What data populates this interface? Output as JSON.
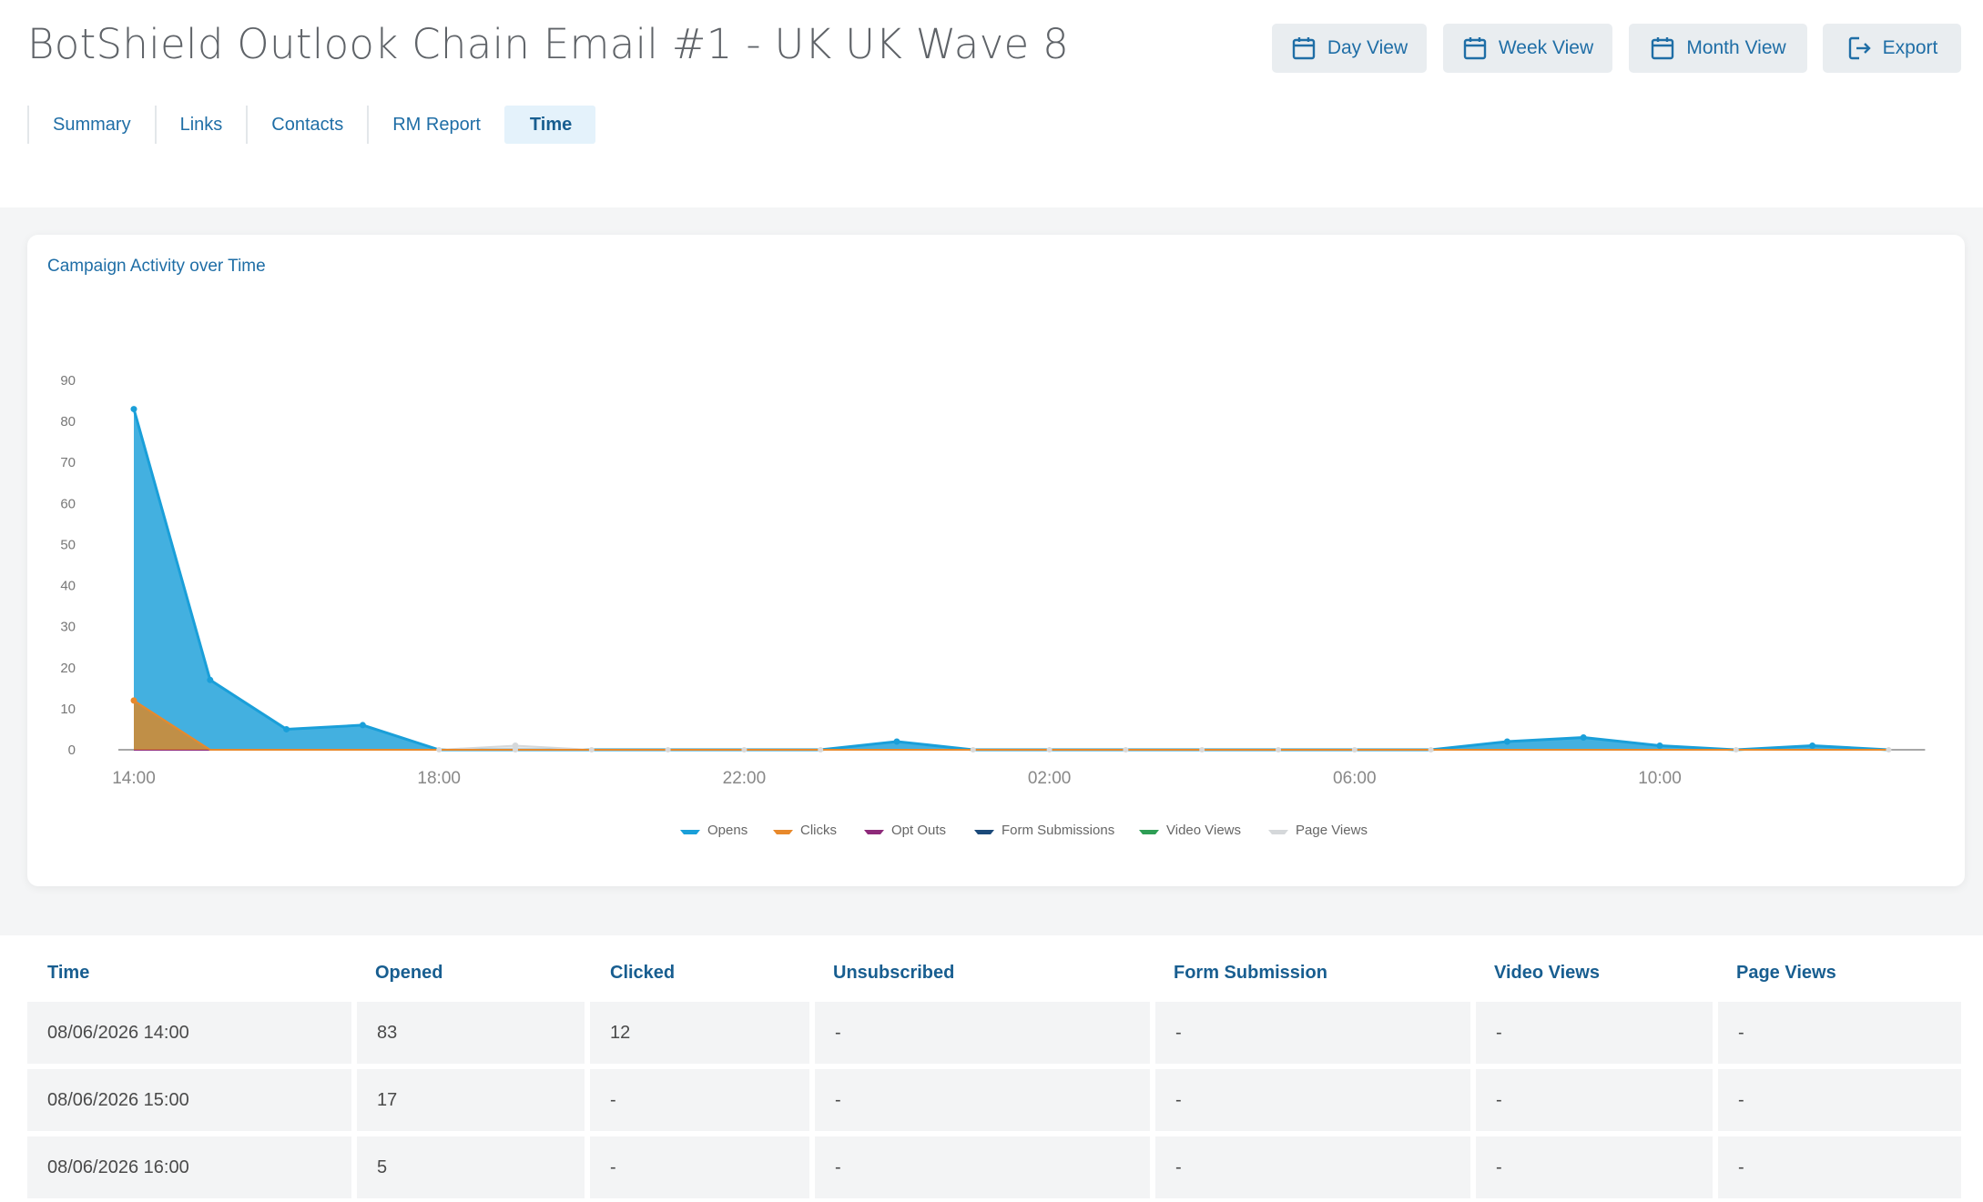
{
  "header": {
    "title": "BotShield Outlook Chain Email #1 - UK UK Wave 8",
    "buttons": {
      "day": "Day View",
      "week": "Week View",
      "month": "Month View",
      "export": "Export"
    }
  },
  "tabs": [
    {
      "label": "Summary",
      "active": false
    },
    {
      "label": "Links",
      "active": false
    },
    {
      "label": "Contacts",
      "active": false
    },
    {
      "label": "RM Report",
      "active": false
    },
    {
      "label": "Time",
      "active": true
    }
  ],
  "card": {
    "title": "Campaign Activity over Time"
  },
  "chart_data": {
    "type": "area",
    "title": "Campaign Activity over Time",
    "x": [
      "14:00",
      "15:00",
      "16:00",
      "17:00",
      "18:00",
      "19:00",
      "20:00",
      "21:00",
      "22:00",
      "23:00",
      "00:00",
      "01:00",
      "02:00",
      "03:00",
      "04:00",
      "05:00",
      "06:00",
      "07:00",
      "08:00",
      "09:00",
      "10:00",
      "11:00",
      "12:00",
      "13:00"
    ],
    "x_tick_labels": [
      "14:00",
      "18:00",
      "22:00",
      "02:00",
      "06:00",
      "10:00"
    ],
    "ylim": [
      0,
      90
    ],
    "y_ticks": [
      0,
      10,
      20,
      30,
      40,
      50,
      60,
      70,
      80,
      90
    ],
    "grid": false,
    "legend_position": "bottom",
    "series": [
      {
        "name": "Opens",
        "color": "#1a9fd9",
        "values": [
          83,
          17,
          5,
          6,
          0,
          0,
          0,
          0,
          0,
          0,
          2,
          0,
          0,
          0,
          0,
          0,
          0,
          0,
          2,
          3,
          1,
          0,
          1,
          0
        ]
      },
      {
        "name": "Clicks",
        "color": "#e8892b",
        "values": [
          12,
          0,
          0,
          0,
          0,
          0,
          0,
          0,
          0,
          0,
          0,
          0,
          0,
          0,
          0,
          0,
          0,
          0,
          0,
          0,
          0,
          0,
          0,
          0
        ]
      },
      {
        "name": "Opt Outs",
        "color": "#8e2a7a",
        "values": [
          0,
          0,
          0,
          0,
          0,
          0,
          0,
          0,
          0,
          0,
          0,
          0,
          0,
          0,
          0,
          0,
          0,
          0,
          0,
          0,
          0,
          0,
          0,
          0
        ]
      },
      {
        "name": "Form Submissions",
        "color": "#1b4a7a",
        "values": [
          0,
          0,
          0,
          0,
          0,
          0,
          0,
          0,
          0,
          0,
          0,
          0,
          0,
          0,
          0,
          0,
          0,
          0,
          0,
          0,
          0,
          0,
          0,
          0
        ]
      },
      {
        "name": "Video Views",
        "color": "#2e9e55",
        "values": [
          0,
          0,
          0,
          0,
          0,
          0,
          0,
          0,
          0,
          0,
          0,
          0,
          0,
          0,
          0,
          0,
          0,
          0,
          0,
          0,
          0,
          0,
          0,
          0
        ]
      },
      {
        "name": "Page Views",
        "color": "#d5d8da",
        "values": [
          0,
          0,
          0,
          0,
          0,
          1,
          0,
          0,
          0,
          0,
          0,
          0,
          0,
          0,
          0,
          0,
          0,
          0,
          0,
          0,
          0,
          0,
          0,
          0
        ]
      }
    ]
  },
  "table": {
    "headers": [
      "Time",
      "Opened",
      "Clicked",
      "Unsubscribed",
      "Form Submission",
      "Video Views",
      "Page Views"
    ],
    "rows": [
      [
        "08/06/2026 14:00",
        "83",
        "12",
        "-",
        "-",
        "-",
        "-"
      ],
      [
        "08/06/2026 15:00",
        "17",
        "-",
        "-",
        "-",
        "-",
        "-"
      ],
      [
        "08/06/2026 16:00",
        "5",
        "-",
        "-",
        "-",
        "-",
        "-"
      ]
    ]
  },
  "icons": {
    "calendar": "calendar-icon",
    "export": "export-icon"
  }
}
